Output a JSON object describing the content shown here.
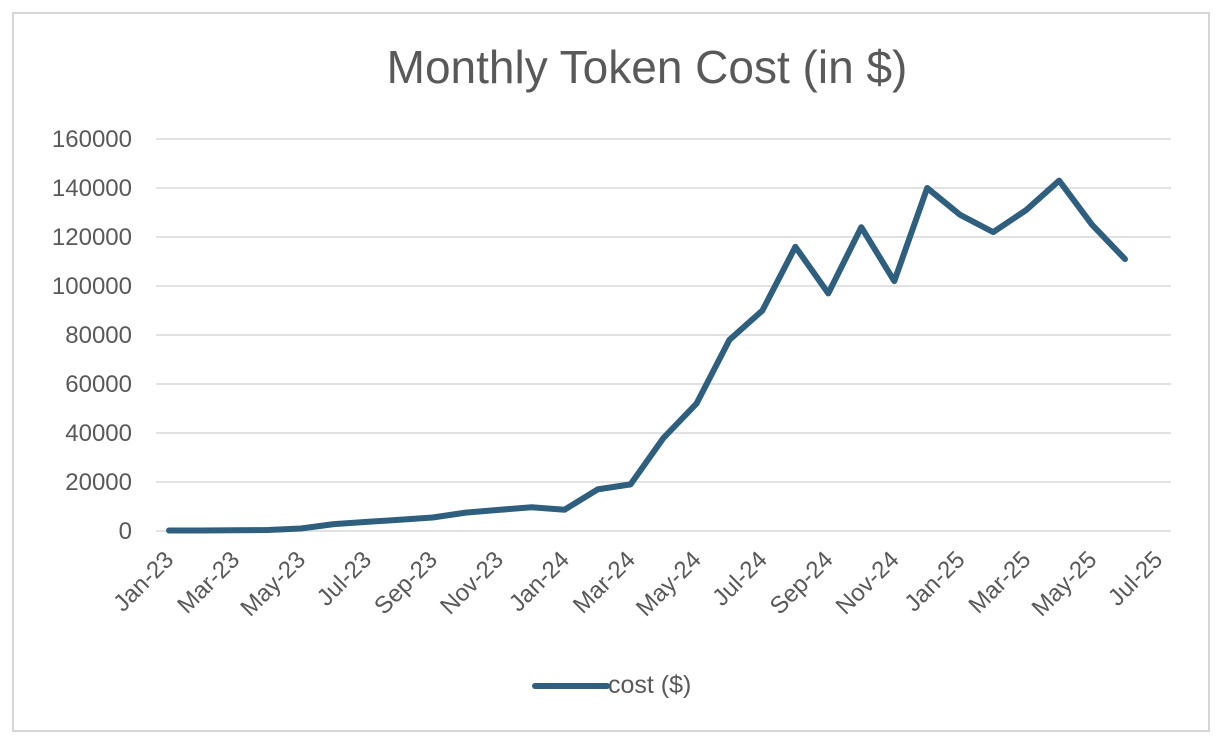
{
  "chart_data": {
    "type": "line",
    "title": "Monthly  Token Cost (in $)",
    "xlabel": "",
    "ylabel": "",
    "ylim": [
      0,
      160000
    ],
    "yticks": [
      "0",
      "20000",
      "40000",
      "60000",
      "80000",
      "100000",
      "120000",
      "140000",
      "160000"
    ],
    "xtick_labels": [
      "Jan-23",
      "Mar-23",
      "May-23",
      "Jul-23",
      "Sep-23",
      "Nov-23",
      "Jan-24",
      "Mar-24",
      "May-24",
      "Jul-24",
      "Sep-24",
      "Nov-24",
      "Jan-25",
      "Mar-25",
      "May-25",
      "Jul-25"
    ],
    "grid": true,
    "legend_position": "bottom",
    "categories": [
      "Jan-23",
      "Feb-23",
      "Mar-23",
      "Apr-23",
      "May-23",
      "Jun-23",
      "Jul-23",
      "Aug-23",
      "Sep-23",
      "Oct-23",
      "Nov-23",
      "Dec-23",
      "Jan-24",
      "Feb-24",
      "Mar-24",
      "Apr-24",
      "May-24",
      "Jun-24",
      "Jul-24",
      "Aug-24",
      "Sep-24",
      "Oct-24",
      "Nov-24",
      "Dec-24",
      "Jan-25",
      "Feb-25",
      "Mar-25",
      "Apr-25",
      "May-25",
      "Jun-25"
    ],
    "series": [
      {
        "name": "cost ($)",
        "color": "#2f5f7e",
        "values": [
          200,
          200,
          300,
          400,
          1000,
          2800,
          3700,
          4600,
          5500,
          7500,
          8600,
          9700,
          8700,
          17000,
          19000,
          38000,
          52000,
          78000,
          90000,
          116000,
          97000,
          124000,
          102000,
          140000,
          129000,
          122000,
          131000,
          143000,
          125000,
          111000
        ]
      }
    ]
  }
}
